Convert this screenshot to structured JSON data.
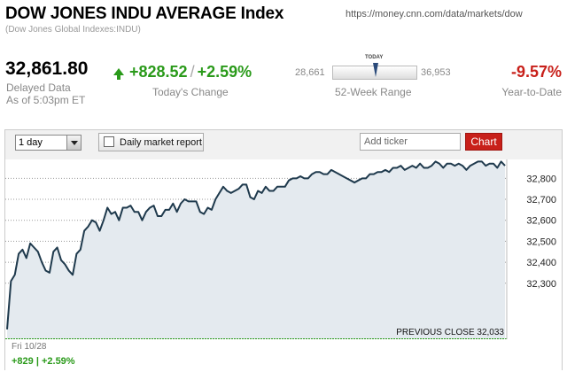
{
  "header": {
    "title": "DOW JONES INDU AVERAGE Index",
    "subtitle": "(Dow Jones Global Indexes:INDU)",
    "url": "https://money.cnn.com/data/markets/dow"
  },
  "quote": {
    "price": "32,861.80",
    "delayed_label": "Delayed Data",
    "as_of": "As of 5:03pm ET",
    "change": "+828.52",
    "separator": "/",
    "change_percent": "+2.59%",
    "change_label": "Today's Change",
    "range_low": "28,661",
    "range_high": "36,953",
    "range_today_label": "TODAY",
    "range_label": "52-Week Range",
    "ytd": "-9.57%",
    "ytd_label": "Year-to-Date"
  },
  "controls": {
    "range_selected": "1 day",
    "daily_report_label": "Daily market report",
    "ticker_placeholder": "Add ticker",
    "chart_button": "Chart"
  },
  "colors": {
    "positive": "#2a9a1a",
    "negative": "#c8201a",
    "line": "#1f3a4d",
    "fill": "#e4eaef"
  },
  "chart_data": {
    "type": "line",
    "ylabels": [
      "32,800",
      "32,700",
      "32,600",
      "32,500",
      "32,400",
      "32,300"
    ],
    "ylim": [
      32033,
      32890
    ],
    "previous_close_label": "PREVIOUS CLOSE 32,033",
    "previous_close": 32033,
    "date_label": "Fri 10/28",
    "change_label": "+829 | +2.59%",
    "series": [
      {
        "values": [
          32080,
          32310,
          32340,
          32440,
          32460,
          32420,
          32490,
          32470,
          32450,
          32400,
          32360,
          32350,
          32450,
          32470,
          32410,
          32390,
          32360,
          32340,
          32440,
          32460,
          32550,
          32570,
          32600,
          32590,
          32550,
          32600,
          32660,
          32630,
          32640,
          32600,
          32660,
          32660,
          32670,
          32640,
          32640,
          32600,
          32640,
          32660,
          32670,
          32620,
          32620,
          32650,
          32650,
          32680,
          32640,
          32680,
          32700,
          32690,
          32690,
          32690,
          32640,
          32630,
          32660,
          32650,
          32700,
          32730,
          32760,
          32740,
          32730,
          32740,
          32750,
          32770,
          32770,
          32710,
          32700,
          32740,
          32730,
          32760,
          32740,
          32740,
          32760,
          32760,
          32760,
          32790,
          32800,
          32800,
          32810,
          32800,
          32800,
          32820,
          32830,
          32830,
          32820,
          32820,
          32840,
          32830,
          32820,
          32810,
          32800,
          32790,
          32780,
          32790,
          32800,
          32800,
          32820,
          32820,
          32830,
          32830,
          32840,
          32830,
          32850,
          32850,
          32860,
          32840,
          32850,
          32860,
          32850,
          32870,
          32850,
          32850,
          32860,
          32880,
          32870,
          32850,
          32870,
          32870,
          32860,
          32870,
          32860,
          32840,
          32860,
          32870,
          32880,
          32880,
          32860,
          32870,
          32870,
          32850,
          32880,
          32860
        ]
      }
    ]
  }
}
